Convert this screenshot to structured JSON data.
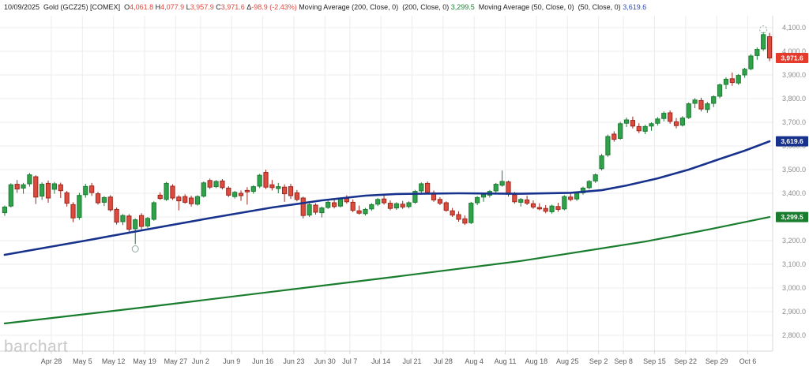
{
  "legend": {
    "parts": [
      {
        "text": "10/09/2025  "
      },
      {
        "text": "Gold (GCZ25) [COMEX]  "
      },
      {
        "pre": "O",
        "val": "4,061.8",
        "vc": "value_red"
      },
      {
        "pre": "H",
        "val": "4,077.9",
        "vc": "value_red"
      },
      {
        "pre": "L",
        "val": "3,957.9",
        "vc": "value_red"
      },
      {
        "pre": "C",
        "val": "3,971.6",
        "vc": "value_red"
      },
      {
        "pre": "Δ",
        "val": "-98.9 (-2.43%)",
        "vc": "value_red"
      },
      {
        "text": "Moving Average (200, Close, 0)  "
      },
      {
        "text": "(200, Close, 0) "
      },
      {
        "val": "3,299.5",
        "vc": "value_green"
      },
      {
        "text": " Moving Average (50, Close, 0)  "
      },
      {
        "text": "(50, Close, 0) "
      },
      {
        "val": "3,619.6",
        "vc": "value_blue"
      }
    ]
  },
  "watermark": "barchart",
  "colors": {
    "up": "#2fa24a",
    "up_border": "#1c7a33",
    "down": "#dd4b3e",
    "down_border": "#9d261d",
    "ma50": "#17328c",
    "ma200": "#1a7d2e",
    "last_badge": "#e53b2c",
    "value_red": "#e0463c",
    "value_green": "#1a7d2e",
    "value_blue": "#2f4db8",
    "grid": "#ececec",
    "axis_line": "#d9d9d9",
    "y_axis_text": "#8c8c8c",
    "x_axis_text": "#5a5a5a",
    "badge_text": "#ffffff",
    "watermark": "#c8c8c8",
    "marker": "#8fa89c"
  },
  "y_axis": {
    "ticks": [
      {
        "label": "4,100.0",
        "price": 4100
      },
      {
        "label": "4,000.0",
        "price": 4000
      },
      {
        "label": "3,900.0",
        "price": 3900
      },
      {
        "label": "3,800.0",
        "price": 3800
      },
      {
        "label": "3,700.0",
        "price": 3700
      },
      {
        "label": "3,600.0",
        "price": 3600
      },
      {
        "label": "3,500.0",
        "price": 3500
      },
      {
        "label": "3,400.0",
        "price": 3400
      },
      {
        "label": "3,300.0",
        "price": 3300
      },
      {
        "label": "3,200.0",
        "price": 3200
      },
      {
        "label": "3,100.0",
        "price": 3100
      },
      {
        "label": "3,000.0",
        "price": 3000
      },
      {
        "label": "2,900.0",
        "price": 2900
      },
      {
        "label": "2,800.0",
        "price": 2800
      }
    ]
  },
  "x_axis": {
    "labels": [
      {
        "label": "Apr 28",
        "index": 8
      },
      {
        "label": "May 5",
        "index": 13
      },
      {
        "label": "May 12",
        "index": 18
      },
      {
        "label": "May 19",
        "index": 23
      },
      {
        "label": "May 27",
        "index": 28
      },
      {
        "label": "Jun 2",
        "index": 32
      },
      {
        "label": "Jun 9",
        "index": 37
      },
      {
        "label": "Jun 16",
        "index": 42
      },
      {
        "label": "Jun 23",
        "index": 47
      },
      {
        "label": "Jun 30",
        "index": 52
      },
      {
        "label": "Jul 7",
        "index": 56
      },
      {
        "label": "Jul 14",
        "index": 61
      },
      {
        "label": "Jul 21",
        "index": 66
      },
      {
        "label": "Jul 28",
        "index": 71
      },
      {
        "label": "Aug 4",
        "index": 76
      },
      {
        "label": "Aug 11",
        "index": 81
      },
      {
        "label": "Aug 18",
        "index": 86
      },
      {
        "label": "Aug 25",
        "index": 91
      },
      {
        "label": "Sep 2",
        "index": 96
      },
      {
        "label": "Sep 8",
        "index": 100
      },
      {
        "label": "Sep 15",
        "index": 105
      },
      {
        "label": "Sep 22",
        "index": 110
      },
      {
        "label": "Sep 29",
        "index": 115
      },
      {
        "label": "Oct 6",
        "index": 120
      }
    ]
  },
  "badges": [
    {
      "name": "last-price-badge",
      "label": "3,971.6",
      "price": 3971.6,
      "color_key": "last_badge"
    },
    {
      "name": "ma50-badge",
      "label": "3,619.6",
      "price": 3619.6,
      "color_key": "ma50"
    },
    {
      "name": "ma200-badge",
      "label": "3,299.5",
      "price": 3299.5,
      "color_key": "ma200"
    }
  ],
  "chart_data": {
    "type": "candlestick",
    "symbol": "Gold (GCZ25) [COMEX]",
    "date": "10/09/2025",
    "ohlc_last": {
      "open": 4061.8,
      "high": 4077.9,
      "low": 3957.9,
      "close": 3971.6,
      "change": -98.9,
      "change_pct": "-2.43%"
    },
    "ylim": [
      2733,
      4150
    ],
    "grid": true,
    "legend_position": "top-left",
    "candles": [
      [
        "Apr 15",
        3318,
        3348,
        3305,
        3342
      ],
      [
        "Apr 16",
        3346,
        3442,
        3340,
        3436
      ],
      [
        "Apr 17",
        3438,
        3456,
        3402,
        3418
      ],
      [
        "Apr 21",
        3422,
        3444,
        3398,
        3436
      ],
      [
        "Apr 22",
        3440,
        3486,
        3428,
        3478
      ],
      [
        "Apr 23",
        3470,
        3476,
        3355,
        3384
      ],
      [
        "Apr 24",
        3388,
        3446,
        3372,
        3438
      ],
      [
        "Apr 25",
        3442,
        3454,
        3360,
        3380
      ],
      [
        "Apr 28",
        3417,
        3448,
        3398,
        3440
      ],
      [
        "Apr 29",
        3436,
        3445,
        3380,
        3411
      ],
      [
        "Apr 30",
        3402,
        3410,
        3344,
        3358
      ],
      [
        "May 1",
        3352,
        3362,
        3278,
        3296
      ],
      [
        "May 2",
        3298,
        3402,
        3288,
        3391
      ],
      [
        "May 5",
        3394,
        3440,
        3381,
        3429
      ],
      [
        "May 6",
        3431,
        3444,
        3389,
        3403
      ],
      [
        "May 7",
        3398,
        3406,
        3352,
        3360
      ],
      [
        "May 8",
        3362,
        3388,
        3346,
        3382
      ],
      [
        "May 9",
        3384,
        3392,
        3322,
        3330
      ],
      [
        "May 12",
        3332,
        3340,
        3268,
        3278
      ],
      [
        "May 13",
        3280,
        3312,
        3266,
        3306
      ],
      [
        "May 14",
        3304,
        3312,
        3238,
        3248
      ],
      [
        "May 15",
        3250,
        3294,
        3185,
        3288
      ],
      [
        "May 16",
        3306,
        3316,
        3248,
        3260
      ],
      [
        "May 19",
        3262,
        3300,
        3254,
        3294
      ],
      [
        "May 20",
        3290,
        3366,
        3284,
        3360
      ],
      [
        "May 21",
        3392,
        3404,
        3372,
        3378
      ],
      [
        "May 22",
        3374,
        3448,
        3368,
        3442
      ],
      [
        "May 23",
        3430,
        3438,
        3372,
        3380
      ],
      [
        "May 27",
        3384,
        3392,
        3328,
        3368
      ],
      [
        "May 28",
        3386,
        3396,
        3356,
        3362
      ],
      [
        "May 29",
        3380,
        3390,
        3344,
        3356
      ],
      [
        "May 30",
        3354,
        3392,
        3348,
        3386
      ],
      [
        "Jun 2",
        3388,
        3450,
        3382,
        3444
      ],
      [
        "Jun 3",
        3454,
        3462,
        3418,
        3426
      ],
      [
        "Jun 4",
        3428,
        3456,
        3422,
        3450
      ],
      [
        "Jun 5",
        3452,
        3460,
        3416,
        3424
      ],
      [
        "Jun 6",
        3422,
        3430,
        3384,
        3392
      ],
      [
        "Jun 9",
        3386,
        3410,
        3378,
        3404
      ],
      [
        "Jun 10",
        3400,
        3412,
        3368,
        3390
      ],
      [
        "Jun 11",
        3412,
        3426,
        3352,
        3406
      ],
      [
        "Jun 12",
        3408,
        3434,
        3398,
        3428
      ],
      [
        "Jun 13",
        3430,
        3482,
        3422,
        3476
      ],
      [
        "Jun 16",
        3488,
        3500,
        3418,
        3426
      ],
      [
        "Jun 17",
        3436,
        3456,
        3412,
        3424
      ],
      [
        "Jun 18",
        3420,
        3444,
        3400,
        3428
      ],
      [
        "Jun 19",
        3426,
        3438,
        3364,
        3398
      ],
      [
        "Jun 20",
        3428,
        3440,
        3376,
        3390
      ],
      [
        "Jun 23",
        3402,
        3414,
        3366,
        3374
      ],
      [
        "Jun 24",
        3380,
        3386,
        3294,
        3306
      ],
      [
        "Jun 25",
        3308,
        3358,
        3300,
        3352
      ],
      [
        "Jun 26",
        3350,
        3358,
        3310,
        3320
      ],
      [
        "Jun 27",
        3318,
        3344,
        3298,
        3338
      ],
      [
        "Jun 30",
        3340,
        3368,
        3334,
        3362
      ],
      [
        "Jul 1",
        3360,
        3374,
        3336,
        3344
      ],
      [
        "Jul 2",
        3346,
        3382,
        3340,
        3376
      ],
      [
        "Jul 3",
        3378,
        3392,
        3356,
        3364
      ],
      [
        "Jul 7",
        3362,
        3374,
        3320,
        3328
      ],
      [
        "Jul 8",
        3326,
        3348,
        3310,
        3316
      ],
      [
        "Jul 9",
        3314,
        3338,
        3306,
        3332
      ],
      [
        "Jul 10",
        3334,
        3358,
        3326,
        3352
      ],
      [
        "Jul 11",
        3354,
        3380,
        3346,
        3374
      ],
      [
        "Jul 14",
        3376,
        3390,
        3352,
        3360
      ],
      [
        "Jul 15",
        3358,
        3370,
        3328,
        3336
      ],
      [
        "Jul 16",
        3338,
        3362,
        3330,
        3356
      ],
      [
        "Jul 17",
        3354,
        3368,
        3334,
        3342
      ],
      [
        "Jul 18",
        3344,
        3366,
        3336,
        3360
      ],
      [
        "Jul 21",
        3362,
        3414,
        3356,
        3408
      ],
      [
        "Jul 22",
        3410,
        3446,
        3402,
        3440
      ],
      [
        "Jul 23",
        3442,
        3450,
        3396,
        3404
      ],
      [
        "Jul 24",
        3402,
        3412,
        3364,
        3372
      ],
      [
        "Jul 25",
        3374,
        3384,
        3350,
        3358
      ],
      [
        "Jul 28",
        3360,
        3366,
        3322,
        3328
      ],
      [
        "Jul 29",
        3326,
        3338,
        3300,
        3308
      ],
      [
        "Jul 30",
        3310,
        3324,
        3280,
        3290
      ],
      [
        "Jul 31",
        3292,
        3306,
        3266,
        3274
      ],
      [
        "Aug 1",
        3276,
        3364,
        3270,
        3358
      ],
      [
        "Aug 4",
        3360,
        3388,
        3350,
        3382
      ],
      [
        "Aug 5",
        3384,
        3400,
        3364,
        3394
      ],
      [
        "Aug 6",
        3392,
        3414,
        3382,
        3408
      ],
      [
        "Aug 7",
        3410,
        3444,
        3400,
        3438
      ],
      [
        "Aug 8",
        3434,
        3496,
        3428,
        3450
      ],
      [
        "Aug 11",
        3448,
        3454,
        3386,
        3396
      ],
      [
        "Aug 12",
        3394,
        3406,
        3356,
        3364
      ],
      [
        "Aug 13",
        3362,
        3380,
        3344,
        3374
      ],
      [
        "Aug 14",
        3372,
        3390,
        3350,
        3358
      ],
      [
        "Aug 15",
        3356,
        3370,
        3334,
        3342
      ],
      [
        "Aug 18",
        3340,
        3358,
        3328,
        3334
      ],
      [
        "Aug 19",
        3336,
        3350,
        3316,
        3324
      ],
      [
        "Aug 20",
        3322,
        3352,
        3314,
        3346
      ],
      [
        "Aug 21",
        3344,
        3360,
        3322,
        3332
      ],
      [
        "Aug 22",
        3334,
        3392,
        3328,
        3386
      ],
      [
        "Aug 25",
        3384,
        3398,
        3366,
        3374
      ],
      [
        "Aug 26",
        3376,
        3406,
        3368,
        3400
      ],
      [
        "Aug 27",
        3402,
        3428,
        3394,
        3422
      ],
      [
        "Aug 28",
        3424,
        3456,
        3416,
        3450
      ],
      [
        "Aug 29",
        3452,
        3484,
        3444,
        3478
      ],
      [
        "Sep 2",
        3504,
        3566,
        3496,
        3558
      ],
      [
        "Sep 3",
        3562,
        3648,
        3554,
        3640
      ],
      [
        "Sep 4",
        3650,
        3662,
        3618,
        3628
      ],
      [
        "Sep 5",
        3632,
        3702,
        3626,
        3694
      ],
      [
        "Sep 8",
        3696,
        3720,
        3680,
        3710
      ],
      [
        "Sep 9",
        3708,
        3724,
        3674,
        3684
      ],
      [
        "Sep 10",
        3682,
        3696,
        3654,
        3664
      ],
      [
        "Sep 11",
        3662,
        3690,
        3650,
        3682
      ],
      [
        "Sep 12",
        3684,
        3700,
        3664,
        3694
      ],
      [
        "Sep 15",
        3696,
        3722,
        3686,
        3714
      ],
      [
        "Sep 16",
        3716,
        3746,
        3704,
        3738
      ],
      [
        "Sep 17",
        3740,
        3750,
        3694,
        3704
      ],
      [
        "Sep 18",
        3702,
        3718,
        3674,
        3686
      ],
      [
        "Sep 19",
        3688,
        3726,
        3682,
        3718
      ],
      [
        "Sep 22",
        3720,
        3784,
        3714,
        3778
      ],
      [
        "Sep 23",
        3780,
        3802,
        3760,
        3794
      ],
      [
        "Sep 24",
        3792,
        3804,
        3746,
        3756
      ],
      [
        "Sep 25",
        3754,
        3786,
        3740,
        3778
      ],
      [
        "Sep 26",
        3780,
        3814,
        3764,
        3808
      ],
      [
        "Sep 29",
        3810,
        3864,
        3802,
        3858
      ],
      [
        "Sep 30",
        3860,
        3890,
        3840,
        3882
      ],
      [
        "Oct 1",
        3884,
        3910,
        3854,
        3868
      ],
      [
        "Oct 2",
        3866,
        3904,
        3858,
        3898
      ],
      [
        "Oct 3",
        3900,
        3930,
        3888,
        3924
      ],
      [
        "Oct 6",
        3926,
        3988,
        3920,
        3980
      ],
      [
        "Oct 7",
        3982,
        4016,
        3964,
        4008
      ],
      [
        "Oct 8",
        4010,
        4081,
        4002,
        4070.5
      ],
      [
        "Oct 9",
        4061.8,
        4077.9,
        3957.9,
        3971.6
      ]
    ],
    "overlays": [
      {
        "name": "ma200",
        "label": "Moving Average (200, Close, 0)",
        "value": 3299.5,
        "color_key": "ma200",
        "points": [
          [
            0,
            2850
          ],
          [
            23,
            2920
          ],
          [
            43,
            2984
          ],
          [
            63,
            3048
          ],
          [
            83,
            3114
          ],
          [
            103,
            3196
          ],
          [
            113,
            3246
          ],
          [
            123,
            3299.5
          ]
        ]
      },
      {
        "name": "ma50",
        "label": "Moving Average (50, Close, 0)",
        "value": 3619.6,
        "color_key": "ma50",
        "points": [
          [
            0,
            3140
          ],
          [
            13,
            3200
          ],
          [
            23,
            3248
          ],
          [
            33,
            3295
          ],
          [
            43,
            3340
          ],
          [
            51,
            3370
          ],
          [
            58,
            3390
          ],
          [
            63,
            3397
          ],
          [
            73,
            3400
          ],
          [
            83,
            3398
          ],
          [
            91,
            3402
          ],
          [
            96,
            3413
          ],
          [
            100,
            3433
          ],
          [
            105,
            3463
          ],
          [
            110,
            3500
          ],
          [
            115,
            3545
          ],
          [
            119,
            3580
          ],
          [
            123,
            3619.6
          ]
        ]
      }
    ],
    "markers": {
      "low": {
        "index": 21,
        "price": 3165
      },
      "high": {
        "index": 122,
        "price": 4092
      }
    }
  }
}
